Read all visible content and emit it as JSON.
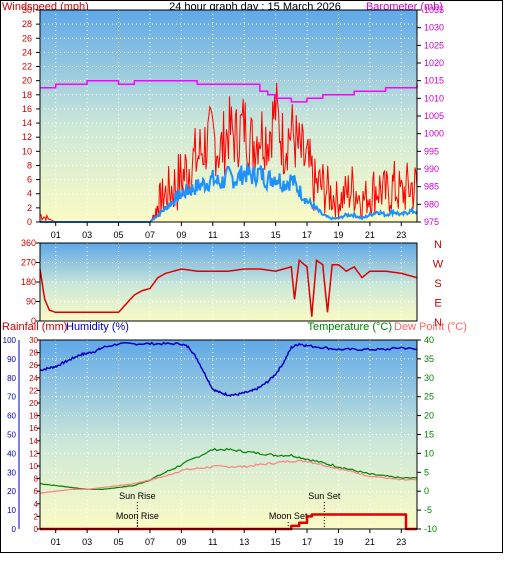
{
  "title": "24 hour graph day : 15 March 2026",
  "x_tick_labels": [
    "01",
    "03",
    "05",
    "07",
    "09",
    "11",
    "13",
    "15",
    "17",
    "19",
    "21",
    "23"
  ],
  "colors": {
    "windspeed": "#ff0000",
    "windavg": "#1e90ff",
    "barometer": "#ff00ff",
    "direction": "#e00000",
    "humidity": "#0000c0",
    "temperature": "#008000",
    "dewpoint": "#ff8080",
    "rainfall": "#e00000"
  },
  "chart_data": [
    {
      "type": "line",
      "name": "wind-and-barometer",
      "left_axis_label": "Windspeed (mph)",
      "right_axis_label": "Barometer (mb)",
      "left_ylim": [
        0,
        30
      ],
      "left_ticks": [
        0,
        2,
        4,
        6,
        8,
        10,
        12,
        14,
        16,
        18,
        20,
        22,
        24,
        26,
        28,
        30
      ],
      "right_ylim": [
        975,
        1035
      ],
      "right_ticks": [
        975,
        980,
        985,
        990,
        995,
        1000,
        1005,
        1010,
        1015,
        1020,
        1025,
        1030,
        1035
      ],
      "grid": true,
      "xlim": [
        0,
        24
      ],
      "series": [
        {
          "key": "windgust",
          "axis": "left",
          "x": [
            0,
            0.5,
            1,
            2,
            3,
            4,
            5,
            6,
            7,
            7.3,
            7.6,
            8,
            8.5,
            9,
            9.5,
            10,
            10.5,
            11,
            11.5,
            12,
            12.5,
            13,
            13.5,
            14,
            14.5,
            15,
            15.5,
            16,
            16.5,
            17,
            17.5,
            18,
            18.5,
            19,
            19.5,
            20,
            20.5,
            21,
            21.5,
            22,
            22.5,
            23,
            23.5,
            24
          ],
          "y": [
            1,
            0.5,
            0,
            0,
            0,
            0,
            0,
            0,
            0,
            1,
            3,
            4,
            5,
            6,
            8,
            9,
            11,
            12,
            10,
            13,
            12,
            14,
            11,
            13,
            12,
            16,
            11,
            13,
            10,
            8,
            5,
            5,
            4,
            3,
            4,
            5,
            3,
            4,
            5,
            4,
            5,
            4,
            5,
            5
          ]
        },
        {
          "key": "windavg",
          "axis": "left",
          "x": [
            0,
            1,
            2,
            3,
            4,
            5,
            6,
            7,
            7.5,
            8,
            8.5,
            9,
            9.5,
            10,
            10.5,
            11,
            11.5,
            12,
            12.5,
            13,
            13.5,
            14,
            14.5,
            15,
            15.5,
            16,
            16.5,
            17,
            17.5,
            18,
            18.5,
            19,
            19.5,
            20,
            20.5,
            21,
            21.5,
            22,
            22.5,
            23,
            23.5,
            24
          ],
          "y": [
            0,
            0,
            0,
            0,
            0,
            0,
            0,
            0,
            1,
            2,
            3,
            4,
            4.5,
            5,
            5.5,
            6,
            5.5,
            6.5,
            6,
            7,
            6.5,
            7,
            6,
            6.5,
            5.5,
            6,
            4.5,
            3,
            2,
            1,
            0.5,
            0.5,
            1,
            1,
            0.5,
            1,
            1.5,
            1,
            1.5,
            1,
            1.5,
            1.5
          ]
        },
        {
          "key": "barometer",
          "axis": "right",
          "x": [
            0,
            1,
            2,
            3,
            4,
            5,
            6,
            7,
            8,
            9,
            10,
            11,
            12,
            13,
            14,
            14.5,
            15,
            15.5,
            16,
            16.5,
            17,
            18,
            19,
            20,
            21,
            22,
            23,
            24
          ],
          "y": [
            1013,
            1014,
            1014,
            1015,
            1015,
            1014,
            1015,
            1015,
            1015,
            1015,
            1014,
            1014,
            1014,
            1014,
            1012,
            1011,
            1010,
            1010,
            1009,
            1009,
            1010,
            1011,
            1011,
            1012,
            1012,
            1013,
            1013,
            1014
          ]
        }
      ]
    },
    {
      "type": "line",
      "name": "wind-direction",
      "ylim": [
        0,
        360
      ],
      "left_ticks": [
        0,
        90,
        180,
        270,
        360
      ],
      "compass_labels": [
        "N",
        "W",
        "S",
        "E",
        "N"
      ],
      "grid": true,
      "xlim": [
        0,
        24
      ],
      "series": [
        {
          "key": "direction",
          "x": [
            0,
            0.3,
            0.6,
            1,
            2,
            3,
            4,
            5,
            5.5,
            6,
            6.5,
            7,
            7.5,
            8,
            9,
            10,
            11,
            12,
            13,
            14,
            15,
            16,
            16.2,
            16.5,
            17,
            17.3,
            17.6,
            18,
            18.3,
            18.6,
            19,
            19.5,
            20,
            20.5,
            21,
            22,
            23,
            24
          ],
          "y": [
            240,
            100,
            50,
            40,
            40,
            40,
            40,
            40,
            80,
            120,
            140,
            150,
            200,
            220,
            240,
            230,
            230,
            230,
            240,
            240,
            230,
            250,
            100,
            280,
            250,
            20,
            280,
            260,
            40,
            260,
            260,
            230,
            250,
            200,
            230,
            230,
            220,
            200
          ]
        }
      ]
    },
    {
      "type": "line",
      "name": "temperature-humidity-rain",
      "axis_labels": [
        "Rainfall (mm)",
        "Humidity (%)",
        "Temperature (°C)",
        "Dew Point (°C)"
      ],
      "rain_ticks": [
        0,
        2,
        4,
        6,
        8,
        10,
        12,
        14,
        16,
        18,
        20,
        22,
        24,
        26,
        28,
        30
      ],
      "humidity_ticks": [
        0,
        10,
        20,
        30,
        40,
        50,
        60,
        70,
        80,
        90,
        100
      ],
      "temperature_ticks": [
        -10,
        -5,
        0,
        5,
        10,
        15,
        20,
        25,
        30,
        35,
        40
      ],
      "rain_ylim": [
        0,
        30
      ],
      "humidity_ylim": [
        0,
        100
      ],
      "temperature_ylim": [
        -10,
        40
      ],
      "grid": true,
      "xlim": [
        0,
        24
      ],
      "annotations": [
        {
          "text": "Sun Rise",
          "x": 6.2
        },
        {
          "text": "Sun Set",
          "x": 18.1
        },
        {
          "text": "Moon Rise",
          "x": 6.2
        },
        {
          "text": "Moon Set",
          "x": 15.8
        }
      ],
      "series": [
        {
          "key": "humidity",
          "axis": "humidity",
          "x": [
            0,
            0.5,
            1,
            1.5,
            2,
            2.5,
            3,
            3.5,
            4,
            5,
            6,
            7,
            8,
            9,
            9.5,
            10,
            10.5,
            11,
            11.5,
            12,
            12.5,
            13,
            13.5,
            14,
            14.5,
            15,
            15.5,
            16,
            16.5,
            17,
            18,
            19,
            20,
            21,
            22,
            23,
            24
          ],
          "y": [
            84,
            85,
            86,
            88,
            90,
            92,
            93,
            94,
            96,
            98,
            98,
            98,
            98,
            98,
            96,
            90,
            82,
            74,
            72,
            71,
            71,
            72,
            73,
            75,
            78,
            82,
            88,
            96,
            98,
            97,
            96,
            95,
            95,
            95,
            95,
            96,
            95
          ]
        },
        {
          "key": "temperature",
          "axis": "temperature",
          "x": [
            0,
            1,
            2,
            3,
            4,
            5,
            6,
            7,
            8,
            9,
            10,
            11,
            12,
            13,
            14,
            15,
            16,
            17,
            18,
            19,
            20,
            21,
            22,
            23,
            24
          ],
          "y": [
            2,
            1.5,
            1,
            0.5,
            0.5,
            1,
            1.5,
            3,
            5,
            7,
            9,
            11,
            11,
            10.5,
            10,
            9.5,
            9.5,
            8.5,
            7.5,
            6.5,
            5.5,
            4.5,
            4,
            3.5,
            3.5
          ]
        },
        {
          "key": "dewpoint",
          "axis": "temperature",
          "x": [
            0,
            1,
            2,
            3,
            4,
            5,
            6,
            7,
            8,
            9,
            10,
            11,
            12,
            13,
            14,
            15,
            16,
            17,
            18,
            19,
            20,
            21,
            22,
            23,
            24
          ],
          "y": [
            -0.5,
            0,
            0.5,
            0.5,
            1,
            1.5,
            2,
            3,
            4,
            5.5,
            6,
            6.5,
            6.5,
            6.5,
            7,
            7.5,
            8,
            8,
            7,
            6,
            5,
            4,
            3.5,
            3,
            3
          ]
        },
        {
          "key": "rainfall",
          "axis": "rain",
          "x": [
            0,
            15,
            16,
            16.5,
            17,
            17.3,
            18,
            19,
            20,
            21,
            22,
            23,
            23.3,
            24
          ],
          "y": [
            0,
            0,
            0.5,
            1,
            2,
            2.3,
            2.3,
            2.3,
            2.3,
            2.3,
            2.3,
            2.3,
            0,
            0
          ]
        }
      ]
    }
  ]
}
